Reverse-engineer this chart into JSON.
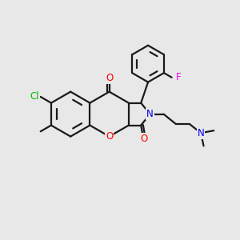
{
  "background_color": "#e8e8e8",
  "bond_color": "#1a1a1a",
  "atom_colors": {
    "O": "#ff0000",
    "N": "#0000ee",
    "Cl": "#00bb00",
    "F": "#ee00ee",
    "C": "#1a1a1a"
  },
  "figsize": [
    3.0,
    3.0
  ],
  "dpi": 100
}
